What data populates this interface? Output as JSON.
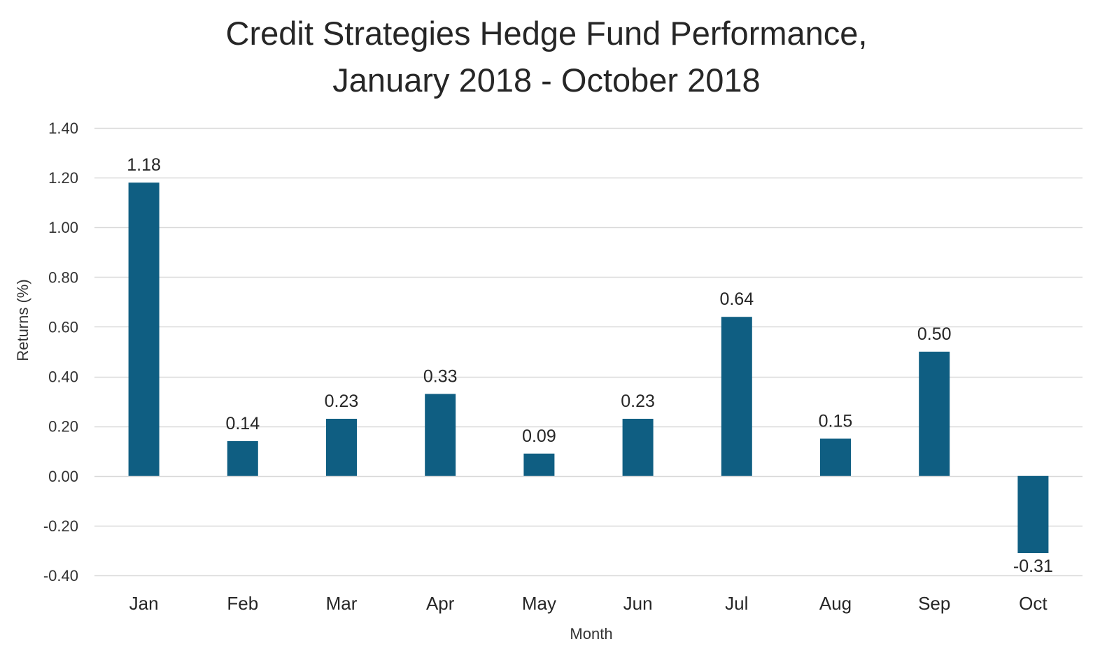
{
  "chart_data": {
    "type": "bar",
    "title": "Credit Strategies Hedge Fund Performance,",
    "subtitle": "January 2018 - October 2018",
    "xlabel": "Month",
    "ylabel": "Returns (%)",
    "categories": [
      "Jan",
      "Feb",
      "Mar",
      "Apr",
      "May",
      "Jun",
      "Jul",
      "Aug",
      "Sep",
      "Oct"
    ],
    "values": [
      1.18,
      0.14,
      0.23,
      0.33,
      0.09,
      0.23,
      0.64,
      0.15,
      0.5,
      -0.31
    ],
    "value_labels": [
      "1.18",
      "0.14",
      "0.23",
      "0.33",
      "0.09",
      "0.23",
      "0.64",
      "0.15",
      "0.50",
      "-0.31"
    ],
    "ylim": [
      -0.4,
      1.4
    ],
    "yticks": [
      1.4,
      1.2,
      1.0,
      0.8,
      0.6,
      0.4,
      0.2,
      0.0,
      -0.2,
      -0.4
    ],
    "ytick_labels": [
      "1.40",
      "1.20",
      "1.00",
      "0.80",
      "0.60",
      "0.40",
      "0.20",
      "0.00",
      "-0.20",
      "-0.40"
    ],
    "grid": true,
    "legend": "none",
    "colors": {
      "bar": "#0f5e82",
      "grid": "#d9d9d9"
    }
  }
}
